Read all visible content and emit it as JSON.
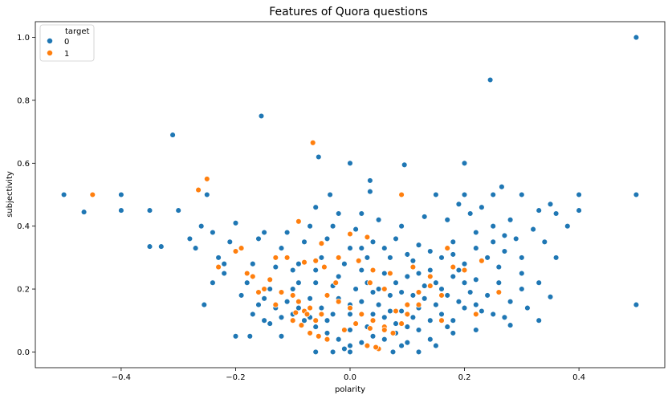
{
  "chart_data": {
    "type": "scatter",
    "title": "Features of Quora questions",
    "xlabel": "polarity",
    "ylabel": "subjectivity",
    "xlim": [
      -0.55,
      0.55
    ],
    "ylim": [
      -0.05,
      1.05
    ],
    "xticks": [
      -0.4,
      -0.2,
      0.0,
      0.2,
      0.4
    ],
    "xtick_labels": [
      "−0.4",
      "−0.2",
      "0.0",
      "0.2",
      "0.4"
    ],
    "yticks": [
      0.0,
      0.2,
      0.4,
      0.6,
      0.8,
      1.0
    ],
    "ytick_labels": [
      "0.0",
      "0.2",
      "0.4",
      "0.6",
      "0.8",
      "1.0"
    ],
    "grid": false,
    "legend": {
      "title": "target",
      "placement": "top-left",
      "entries": [
        {
          "label": "0",
          "color": "#1f77b4"
        },
        {
          "label": "1",
          "color": "#ff7f0e"
        }
      ]
    },
    "series": [
      {
        "name": "0",
        "color": "#1f77b4",
        "points": [
          [
            0.5,
            1.0
          ],
          [
            0.245,
            0.865
          ],
          [
            -0.155,
            0.75
          ],
          [
            -0.31,
            0.69
          ],
          [
            -0.055,
            0.62
          ],
          [
            0.0,
            0.6
          ],
          [
            0.095,
            0.595
          ],
          [
            0.2,
            0.6
          ],
          [
            0.035,
            0.545
          ],
          [
            0.265,
            0.525
          ],
          [
            -0.5,
            0.5
          ],
          [
            -0.4,
            0.5
          ],
          [
            -0.25,
            0.5
          ],
          [
            -0.035,
            0.5
          ],
          [
            0.035,
            0.51
          ],
          [
            0.15,
            0.5
          ],
          [
            0.2,
            0.5
          ],
          [
            0.25,
            0.5
          ],
          [
            0.3,
            0.5
          ],
          [
            0.4,
            0.5
          ],
          [
            0.5,
            0.5
          ],
          [
            -0.465,
            0.445
          ],
          [
            -0.4,
            0.45
          ],
          [
            -0.35,
            0.45
          ],
          [
            -0.3,
            0.45
          ],
          [
            0.4,
            0.45
          ],
          [
            -0.35,
            0.335
          ],
          [
            -0.33,
            0.335
          ],
          [
            -0.27,
            0.33
          ],
          [
            -0.2,
            0.41
          ],
          [
            -0.255,
            0.15
          ],
          [
            -0.2,
            0.05
          ],
          [
            -0.175,
            0.05
          ],
          [
            0.5,
            0.15
          ],
          [
            0.35,
            0.175
          ],
          [
            0.33,
            0.1
          ],
          [
            0.28,
            0.085
          ],
          [
            0.12,
            0.0
          ],
          [
            0.15,
            0.02
          ],
          [
            0.075,
            0.0
          ],
          [
            0.0,
            0.0
          ],
          [
            -0.03,
            0.0
          ],
          [
            -0.06,
            0.0
          ],
          [
            0.18,
            0.06
          ],
          [
            0.25,
            0.12
          ],
          [
            -0.14,
            0.09
          ],
          [
            -0.12,
            0.05
          ],
          [
            0.22,
            0.15
          ],
          [
            0.3,
            0.25
          ],
          [
            0.36,
            0.3
          ],
          [
            0.38,
            0.4
          ],
          [
            0.33,
            0.45
          ],
          [
            0.28,
            0.42
          ],
          [
            0.22,
            0.38
          ],
          [
            0.18,
            0.35
          ],
          [
            0.12,
            0.34
          ],
          [
            0.08,
            0.36
          ],
          [
            0.04,
            0.35
          ],
          [
            0.0,
            0.33
          ],
          [
            -0.04,
            0.36
          ],
          [
            -0.08,
            0.35
          ],
          [
            -0.12,
            0.33
          ],
          [
            -0.16,
            0.36
          ],
          [
            -0.2,
            0.32
          ],
          [
            -0.23,
            0.3
          ],
          [
            -0.22,
            0.25
          ],
          [
            -0.18,
            0.22
          ],
          [
            -0.14,
            0.2
          ],
          [
            -0.1,
            0.2
          ],
          [
            -0.06,
            0.22
          ],
          [
            -0.02,
            0.24
          ],
          [
            0.02,
            0.26
          ],
          [
            0.06,
            0.25
          ],
          [
            0.1,
            0.24
          ],
          [
            0.14,
            0.26
          ],
          [
            0.18,
            0.24
          ],
          [
            0.22,
            0.23
          ],
          [
            0.26,
            0.22
          ],
          [
            0.3,
            0.2
          ],
          [
            0.33,
            0.22
          ],
          [
            0.27,
            0.32
          ],
          [
            0.24,
            0.3
          ],
          [
            0.2,
            0.28
          ],
          [
            0.16,
            0.3
          ],
          [
            0.11,
            0.29
          ],
          [
            0.07,
            0.3
          ],
          [
            0.03,
            0.3
          ],
          [
            -0.01,
            0.28
          ],
          [
            -0.05,
            0.3
          ],
          [
            -0.09,
            0.28
          ],
          [
            -0.13,
            0.27
          ],
          [
            -0.17,
            0.28
          ],
          [
            -0.19,
            0.18
          ],
          [
            -0.16,
            0.15
          ],
          [
            -0.13,
            0.14
          ],
          [
            -0.1,
            0.12
          ],
          [
            -0.08,
            0.1
          ],
          [
            -0.06,
            0.08
          ],
          [
            -0.04,
            0.06
          ],
          [
            -0.02,
            0.04
          ],
          [
            0.0,
            0.02
          ],
          [
            0.02,
            0.03
          ],
          [
            0.04,
            0.05
          ],
          [
            0.06,
            0.04
          ],
          [
            0.08,
            0.06
          ],
          [
            0.1,
            0.08
          ],
          [
            0.12,
            0.07
          ],
          [
            0.14,
            0.1
          ],
          [
            0.16,
            0.12
          ],
          [
            0.18,
            0.1
          ],
          [
            0.2,
            0.14
          ],
          [
            0.1,
            0.03
          ],
          [
            0.05,
            0.01
          ],
          [
            -0.01,
            0.01
          ],
          [
            0.03,
            0.08
          ],
          [
            -0.05,
            0.14
          ],
          [
            0.0,
            0.12
          ],
          [
            0.05,
            0.15
          ],
          [
            0.09,
            0.13
          ],
          [
            0.13,
            0.17
          ],
          [
            0.17,
            0.18
          ],
          [
            0.21,
            0.19
          ],
          [
            -0.02,
            0.17
          ],
          [
            -0.07,
            0.17
          ],
          [
            -0.11,
            0.16
          ],
          [
            0.01,
            0.2
          ],
          [
            0.05,
            0.2
          ],
          [
            0.09,
            0.19
          ],
          [
            0.13,
            0.21
          ],
          [
            -0.03,
            0.21
          ],
          [
            0.02,
            0.16
          ],
          [
            0.06,
            0.11
          ],
          [
            0.11,
            0.11
          ],
          [
            0.15,
            0.15
          ],
          [
            0.07,
            0.18
          ],
          [
            0.03,
            0.22
          ],
          [
            -0.04,
            0.1
          ],
          [
            0.0,
            0.07
          ],
          [
            0.04,
            0.12
          ],
          [
            0.08,
            0.09
          ],
          [
            0.12,
            0.14
          ],
          [
            0.17,
            0.08
          ],
          [
            0.2,
            0.22
          ],
          [
            0.24,
            0.18
          ],
          [
            0.28,
            0.16
          ],
          [
            0.31,
            0.14
          ],
          [
            0.26,
            0.27
          ],
          [
            0.3,
            0.3
          ],
          [
            0.34,
            0.35
          ],
          [
            0.25,
            0.4
          ],
          [
            0.35,
            0.47
          ],
          [
            0.32,
            0.39
          ],
          [
            0.36,
            0.44
          ],
          [
            -0.26,
            0.4
          ],
          [
            -0.24,
            0.38
          ],
          [
            -0.28,
            0.36
          ],
          [
            -0.24,
            0.22
          ],
          [
            -0.22,
            0.28
          ],
          [
            -0.21,
            0.35
          ],
          [
            -0.15,
            0.38
          ],
          [
            -0.11,
            0.38
          ],
          [
            -0.07,
            0.4
          ],
          [
            -0.03,
            0.4
          ],
          [
            0.01,
            0.39
          ],
          [
            0.05,
            0.42
          ],
          [
            0.09,
            0.4
          ],
          [
            0.13,
            0.43
          ],
          [
            0.17,
            0.42
          ],
          [
            0.21,
            0.44
          ],
          [
            0.23,
            0.46
          ],
          [
            0.19,
            0.47
          ],
          [
            0.27,
            0.37
          ],
          [
            0.02,
            0.44
          ],
          [
            -0.02,
            0.44
          ],
          [
            -0.06,
            0.46
          ],
          [
            0.16,
            0.2
          ],
          [
            0.19,
            0.16
          ],
          [
            0.23,
            0.13
          ],
          [
            0.27,
            0.11
          ],
          [
            0.22,
            0.07
          ],
          [
            0.14,
            0.04
          ],
          [
            0.09,
            0.02
          ],
          [
            0.07,
            0.13
          ],
          [
            0.11,
            0.18
          ],
          [
            0.15,
            0.22
          ],
          [
            0.19,
            0.26
          ],
          [
            0.12,
            0.25
          ],
          [
            0.08,
            0.22
          ],
          [
            0.04,
            0.19
          ],
          [
            0.0,
            0.15
          ],
          [
            -0.03,
            0.12
          ],
          [
            -0.07,
            0.11
          ],
          [
            -0.09,
            0.14
          ],
          [
            -0.12,
            0.11
          ],
          [
            -0.15,
            0.1
          ],
          [
            -0.17,
            0.12
          ],
          [
            -0.15,
            0.17
          ],
          [
            -0.12,
            0.19
          ],
          [
            -0.09,
            0.22
          ],
          [
            -0.1,
            0.26
          ],
          [
            -0.06,
            0.26
          ],
          [
            -0.02,
            0.3
          ],
          [
            0.02,
            0.33
          ],
          [
            0.06,
            0.33
          ],
          [
            0.1,
            0.31
          ],
          [
            0.14,
            0.32
          ],
          [
            0.18,
            0.31
          ],
          [
            0.22,
            0.33
          ],
          [
            0.25,
            0.35
          ],
          [
            0.29,
            0.36
          ]
        ]
      },
      {
        "name": "1",
        "color": "#ff7f0e",
        "points": [
          [
            -0.065,
            0.665
          ],
          [
            -0.25,
            0.55
          ],
          [
            -0.265,
            0.515
          ],
          [
            -0.45,
            0.5
          ],
          [
            0.09,
            0.5
          ],
          [
            -0.09,
            0.415
          ],
          [
            0.0,
            0.375
          ],
          [
            0.03,
            0.365
          ],
          [
            -0.05,
            0.345
          ],
          [
            -0.19,
            0.33
          ],
          [
            -0.2,
            0.32
          ],
          [
            -0.23,
            0.27
          ],
          [
            -0.18,
            0.25
          ],
          [
            -0.17,
            0.24
          ],
          [
            -0.13,
            0.3
          ],
          [
            -0.11,
            0.3
          ],
          [
            -0.08,
            0.285
          ],
          [
            -0.06,
            0.29
          ],
          [
            -0.045,
            0.27
          ],
          [
            -0.02,
            0.3
          ],
          [
            0.015,
            0.29
          ],
          [
            0.04,
            0.26
          ],
          [
            0.07,
            0.25
          ],
          [
            0.11,
            0.27
          ],
          [
            0.14,
            0.24
          ],
          [
            -0.15,
            0.2
          ],
          [
            -0.12,
            0.19
          ],
          [
            -0.1,
            0.18
          ],
          [
            -0.09,
            0.16
          ],
          [
            -0.07,
            0.14
          ],
          [
            -0.05,
            0.12
          ],
          [
            -0.06,
            0.1
          ],
          [
            -0.08,
            0.13
          ],
          [
            -0.04,
            0.18
          ],
          [
            -0.02,
            0.16
          ],
          [
            0.0,
            0.14
          ],
          [
            0.02,
            0.12
          ],
          [
            0.04,
            0.1
          ],
          [
            0.06,
            0.08
          ],
          [
            0.08,
            0.13
          ],
          [
            0.1,
            0.15
          ],
          [
            0.12,
            0.19
          ],
          [
            0.14,
            0.21
          ],
          [
            0.16,
            0.18
          ],
          [
            0.18,
            0.27
          ],
          [
            0.2,
            0.26
          ],
          [
            0.23,
            0.29
          ],
          [
            0.17,
            0.33
          ],
          [
            -0.1,
            0.1
          ],
          [
            -0.085,
            0.085
          ],
          [
            -0.07,
            0.06
          ],
          [
            -0.055,
            0.05
          ],
          [
            -0.04,
            0.04
          ],
          [
            -0.075,
            0.12
          ],
          [
            -0.095,
            0.125
          ],
          [
            0.03,
            0.02
          ],
          [
            0.05,
            0.01
          ],
          [
            0.045,
            0.015
          ],
          [
            0.035,
            0.075
          ],
          [
            0.06,
            0.07
          ],
          [
            0.075,
            0.06
          ],
          [
            0.09,
            0.09
          ],
          [
            0.1,
            0.12
          ],
          [
            0.12,
            0.15
          ],
          [
            0.01,
            0.09
          ],
          [
            -0.01,
            0.07
          ],
          [
            0.035,
            0.22
          ],
          [
            0.06,
            0.2
          ],
          [
            -0.13,
            0.15
          ],
          [
            -0.14,
            0.23
          ],
          [
            0.26,
            0.19
          ],
          [
            0.22,
            0.12
          ],
          [
            0.16,
            0.1
          ],
          [
            -0.16,
            0.19
          ],
          [
            -0.025,
            0.22
          ]
        ]
      }
    ]
  }
}
